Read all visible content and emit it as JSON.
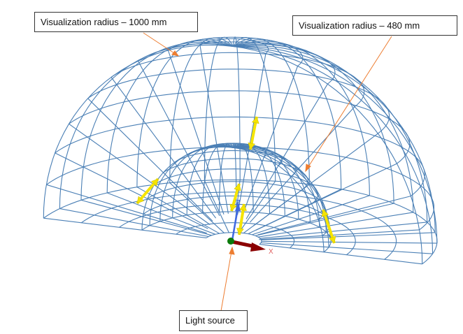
{
  "labels": {
    "outer_radius": "Visualization radius – 1000 mm",
    "inner_radius": "Visualization radius – 480 mm",
    "light_source": "Light source"
  },
  "axes": {
    "z": "Z",
    "x": "X"
  },
  "colors": {
    "wireframe": "#4a7fb5",
    "annotation_arrow": "#ed7d31",
    "x_axis": "#8b0000",
    "z_axis": "#4169e1",
    "origin": "#0a7a0a",
    "direction_arrows": "#f5e400"
  },
  "radii_mm": [
    1000,
    480
  ]
}
